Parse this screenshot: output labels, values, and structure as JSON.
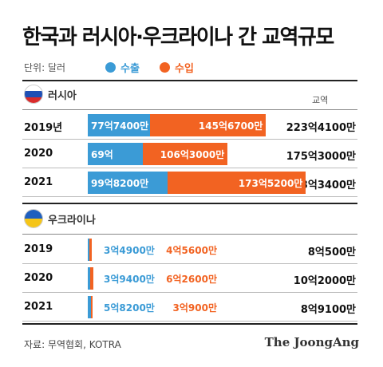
{
  "title": "한국과 러시아·우크라이나 간 교역규모",
  "legend": {
    "unit": "단위: 달러",
    "export_label": "수출",
    "import_label": "수입"
  },
  "colors": {
    "export": "#3b9bd6",
    "import": "#f26322",
    "text": "#111111"
  },
  "column_header": "교역",
  "sections": [
    {
      "name": "러시아",
      "flag": "russia-flag-icon",
      "rows": [
        {
          "year": "2019년",
          "export": "77억7400만",
          "import": "145억6700만",
          "total": "223억4100만"
        },
        {
          "year": "2020",
          "export": "69억",
          "import": "106억3000만",
          "total": "175억3000만"
        },
        {
          "year": "2021",
          "export": "99억8200만",
          "import": "173억5200만",
          "total": "273억3400만"
        }
      ]
    },
    {
      "name": "우크라이나",
      "flag": "ukraine-flag-icon",
      "rows": [
        {
          "year": "2019",
          "export": "3억4900만",
          "import": "4억5600만",
          "total": "8억500만"
        },
        {
          "year": "2020",
          "export": "3억9400만",
          "import": "6억2600만",
          "total": "10억2000만"
        },
        {
          "year": "2021",
          "export": "5억8200만",
          "import": "3억900만",
          "total": "8억9100만"
        }
      ]
    }
  ],
  "chart_data": {
    "type": "bar",
    "stacked": true,
    "orientation": "horizontal",
    "unit": "억 달러",
    "groups": [
      {
        "country": "러시아",
        "categories": [
          "2019",
          "2020",
          "2021"
        ],
        "series": [
          {
            "name": "수출",
            "values": [
              77.74,
              69.0,
              99.82
            ]
          },
          {
            "name": "수입",
            "values": [
              145.67,
              106.3,
              173.52
            ]
          }
        ],
        "totals": [
          223.41,
          175.3,
          273.34
        ]
      },
      {
        "country": "우크라이나",
        "categories": [
          "2019",
          "2020",
          "2021"
        ],
        "series": [
          {
            "name": "수출",
            "values": [
              3.49,
              3.94,
              5.82
            ]
          },
          {
            "name": "수입",
            "values": [
              4.56,
              6.26,
              3.09
            ]
          }
        ],
        "totals": [
          8.05,
          10.2,
          8.91
        ]
      }
    ]
  },
  "source": "자료: 무역협회, KOTRA",
  "brand": "The JoongAng"
}
